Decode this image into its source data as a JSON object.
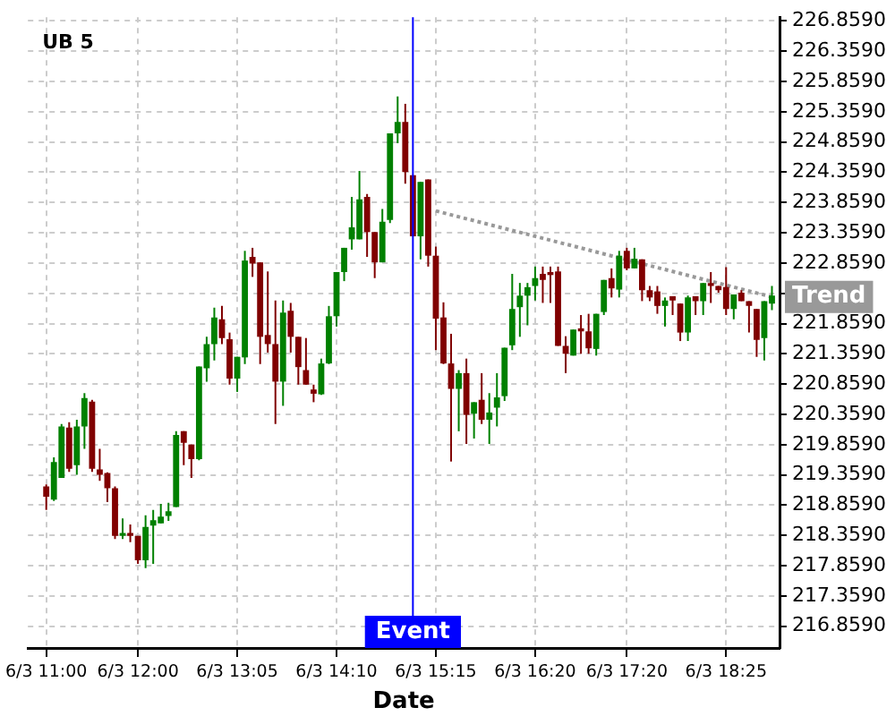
{
  "chart_data": {
    "type": "candlestick",
    "title": "UB 5",
    "xlabel": "Date",
    "x": [
      "--06-03T11:00",
      "--06-03T11:05",
      "--06-03T11:10",
      "--06-03T11:15",
      "--06-03T11:20",
      "--06-03T11:25",
      "--06-03T11:30",
      "--06-03T11:35",
      "--06-03T11:40",
      "--06-03T11:45",
      "--06-03T11:50",
      "--06-03T11:55",
      "--06-03T12:00",
      "--06-03T12:05",
      "--06-03T12:10",
      "--06-03T12:15",
      "--06-03T12:20",
      "--06-03T12:25",
      "--06-03T12:30",
      "--06-03T12:35",
      "--06-03T12:40",
      "--06-03T12:45",
      "--06-03T12:50",
      "--06-03T12:55",
      "--06-03T13:00",
      "--06-03T13:05",
      "--06-03T13:10",
      "--06-03T13:15",
      "--06-03T13:20",
      "--06-03T13:25",
      "--06-03T13:30",
      "--06-03T13:35",
      "--06-03T13:40",
      "--06-03T13:45",
      "--06-03T13:50",
      "--06-03T13:55",
      "--06-03T14:00",
      "--06-03T14:05",
      "--06-03T14:10",
      "--06-03T14:15",
      "--06-03T14:20",
      "--06-03T14:25",
      "--06-03T14:30",
      "--06-03T14:35",
      "--06-03T14:40",
      "--06-03T14:45",
      "--06-03T14:50",
      "--06-03T14:55",
      "--06-03T15:00",
      "--06-03T15:05",
      "--06-03T15:10",
      "--06-03T15:15",
      "--06-03T15:20",
      "--06-03T15:25",
      "--06-03T15:30",
      "--06-03T15:35",
      "--06-03T15:40",
      "--06-03T15:45",
      "--06-03T15:50",
      "--06-03T15:55",
      "--06-03T16:00",
      "--06-03T16:05",
      "--06-03T16:10",
      "--06-03T16:15",
      "--06-03T16:20",
      "--06-03T16:25",
      "--06-03T16:30",
      "--06-03T16:35",
      "--06-03T16:40",
      "--06-03T16:45",
      "--06-03T16:50",
      "--06-03T16:55",
      "--06-03T17:00",
      "--06-03T17:05",
      "--06-03T17:10",
      "--06-03T17:15",
      "--06-03T17:20",
      "--06-03T17:25",
      "--06-03T17:30",
      "--06-03T17:35",
      "--06-03T17:40",
      "--06-03T17:45",
      "--06-03T17:50",
      "--06-03T17:55",
      "--06-03T18:00",
      "--06-03T18:05",
      "--06-03T18:10",
      "--06-03T18:15",
      "--06-03T18:20",
      "--06-03T18:25",
      "--06-03T18:30",
      "--06-03T18:35",
      "--06-03T18:40",
      "--06-03T18:45",
      "--06-03T18:50",
      "--06-03T18:55"
    ],
    "ohlc": [
      [
        219.17,
        219.2,
        218.78,
        219.0
      ],
      [
        218.95,
        219.65,
        218.93,
        219.57
      ],
      [
        219.31,
        220.2,
        219.31,
        220.16
      ],
      [
        220.14,
        220.23,
        219.41,
        219.46
      ],
      [
        219.52,
        220.27,
        219.36,
        220.16
      ],
      [
        220.16,
        220.71,
        219.79,
        220.63
      ],
      [
        220.57,
        220.6,
        219.41,
        219.46
      ],
      [
        219.45,
        219.79,
        219.26,
        219.36
      ],
      [
        219.39,
        219.4,
        218.91,
        219.14
      ],
      [
        219.14,
        219.17,
        218.3,
        218.35
      ],
      [
        218.35,
        218.64,
        218.3,
        218.4
      ],
      [
        218.4,
        218.54,
        218.25,
        218.35
      ],
      [
        218.35,
        218.35,
        217.89,
        217.95
      ],
      [
        217.95,
        218.69,
        217.82,
        218.5
      ],
      [
        218.52,
        218.78,
        217.89,
        218.61
      ],
      [
        218.56,
        218.88,
        218.56,
        218.67
      ],
      [
        218.68,
        218.9,
        218.6,
        218.76
      ],
      [
        218.83,
        220.08,
        218.83,
        220.02
      ],
      [
        220.08,
        220.08,
        219.52,
        219.89
      ],
      [
        219.86,
        219.86,
        219.31,
        219.62
      ],
      [
        219.62,
        221.15,
        219.6,
        221.15
      ],
      [
        221.12,
        221.64,
        220.9,
        221.52
      ],
      [
        221.52,
        222.12,
        221.25,
        221.96
      ],
      [
        221.93,
        222.15,
        221.52,
        221.62
      ],
      [
        221.6,
        221.71,
        220.85,
        220.95
      ],
      [
        220.95,
        221.31,
        220.73,
        221.31
      ],
      [
        221.3,
        223.06,
        221.19,
        222.9
      ],
      [
        222.96,
        223.11,
        222.63,
        222.85
      ],
      [
        222.87,
        222.87,
        221.19,
        221.64
      ],
      [
        221.67,
        222.72,
        221.38,
        221.52
      ],
      [
        221.52,
        222.24,
        220.2,
        220.9
      ],
      [
        220.9,
        222.24,
        220.5,
        222.04
      ],
      [
        222.07,
        222.2,
        221.38,
        221.64
      ],
      [
        221.64,
        221.64,
        220.85,
        221.14
      ],
      [
        221.09,
        221.62,
        220.85,
        220.85
      ],
      [
        220.77,
        220.85,
        220.56,
        220.7
      ],
      [
        220.69,
        221.28,
        220.68,
        221.2
      ],
      [
        221.2,
        222.15,
        221.19,
        221.98
      ],
      [
        221.98,
        222.71,
        221.81,
        222.71
      ],
      [
        222.71,
        223.11,
        222.56,
        223.11
      ],
      [
        223.25,
        223.95,
        223.08,
        223.45
      ],
      [
        223.25,
        224.38,
        223.25,
        223.91
      ],
      [
        223.95,
        224.0,
        222.96,
        223.37
      ],
      [
        223.37,
        223.37,
        222.61,
        222.87
      ],
      [
        222.87,
        223.75,
        222.87,
        223.54
      ],
      [
        223.57,
        225.0,
        223.52,
        225.0
      ],
      [
        225.0,
        225.61,
        224.84,
        225.19
      ],
      [
        225.19,
        225.49,
        224.17,
        224.36
      ],
      [
        224.31,
        224.31,
        223.3,
        223.3
      ],
      [
        223.3,
        224.2,
        222.92,
        224.2
      ],
      [
        224.24,
        224.24,
        222.8,
        222.98
      ],
      [
        222.98,
        223.13,
        221.42,
        221.94
      ],
      [
        221.96,
        222.21,
        221.19,
        221.2
      ],
      [
        221.2,
        221.69,
        219.58,
        220.78
      ],
      [
        220.78,
        221.09,
        220.08,
        221.04
      ],
      [
        221.04,
        221.28,
        219.87,
        220.35
      ],
      [
        220.37,
        220.56,
        219.96,
        220.56
      ],
      [
        220.6,
        221.04,
        220.2,
        220.27
      ],
      [
        220.27,
        220.71,
        219.87,
        220.39
      ],
      [
        220.47,
        221.04,
        220.16,
        220.64
      ],
      [
        220.66,
        221.46,
        220.58,
        221.46
      ],
      [
        221.5,
        222.68,
        221.42,
        222.1
      ],
      [
        222.13,
        222.53,
        221.64,
        222.32
      ],
      [
        222.32,
        222.53,
        221.83,
        222.46
      ],
      [
        222.48,
        222.8,
        222.24,
        222.61
      ],
      [
        222.68,
        222.8,
        222.2,
        222.58
      ],
      [
        222.71,
        222.8,
        222.2,
        222.66
      ],
      [
        222.72,
        222.8,
        221.49,
        221.49
      ],
      [
        221.49,
        221.65,
        221.04,
        221.36
      ],
      [
        221.33,
        221.76,
        221.33,
        221.76
      ],
      [
        221.78,
        222.0,
        221.36,
        221.73
      ],
      [
        221.73,
        222.02,
        221.36,
        221.45
      ],
      [
        221.44,
        222.02,
        221.33,
        222.02
      ],
      [
        222.05,
        222.58,
        222.0,
        222.58
      ],
      [
        222.61,
        222.77,
        222.29,
        222.44
      ],
      [
        222.42,
        223.06,
        222.29,
        222.98
      ],
      [
        223.06,
        223.11,
        222.74,
        222.77
      ],
      [
        222.77,
        223.11,
        222.77,
        222.93
      ],
      [
        222.92,
        222.92,
        222.23,
        222.41
      ],
      [
        222.41,
        222.48,
        222.23,
        222.29
      ],
      [
        222.39,
        222.48,
        222.02,
        222.15
      ],
      [
        222.15,
        222.29,
        221.81,
        222.24
      ],
      [
        222.31,
        222.31,
        222.0,
        222.24
      ],
      [
        222.19,
        222.19,
        221.57,
        221.71
      ],
      [
        221.71,
        222.32,
        221.57,
        222.29
      ],
      [
        222.31,
        222.31,
        222.0,
        222.23
      ],
      [
        222.23,
        222.53,
        222.0,
        222.53
      ],
      [
        222.53,
        222.71,
        222.2,
        222.48
      ],
      [
        222.48,
        222.48,
        222.37,
        222.41
      ],
      [
        222.46,
        222.79,
        222.0,
        222.1
      ],
      [
        222.1,
        222.34,
        221.93,
        222.34
      ],
      [
        222.37,
        222.41,
        222.23,
        222.23
      ],
      [
        222.23,
        222.23,
        221.71,
        222.15
      ],
      [
        222.1,
        222.1,
        221.31,
        221.59
      ],
      [
        221.62,
        222.23,
        221.25,
        222.23
      ],
      [
        222.19,
        222.48,
        222.08,
        222.32
      ]
    ],
    "colors": [
      "#800000",
      "#008000",
      "#008000",
      "#800000",
      "#008000",
      "#008000",
      "#800000",
      "#800000",
      "#800000",
      "#800000",
      "#008000",
      "#800000",
      "#800000",
      "#008000",
      "#008000",
      "#008000",
      "#008000",
      "#008000",
      "#800000",
      "#800000",
      "#008000",
      "#008000",
      "#008000",
      "#800000",
      "#800000",
      "#008000",
      "#008000",
      "#800000",
      "#800000",
      "#800000",
      "#800000",
      "#008000",
      "#800000",
      "#800000",
      "#800000",
      "#800000",
      "#008000",
      "#008000",
      "#008000",
      "#008000",
      "#008000",
      "#008000",
      "#800000",
      "#800000",
      "#008000",
      "#008000",
      "#008000",
      "#800000",
      "#800000",
      "#008000",
      "#800000",
      "#800000",
      "#800000",
      "#800000",
      "#008000",
      "#800000",
      "#008000",
      "#800000",
      "#008000",
      "#008000",
      "#008000",
      "#008000",
      "#008000",
      "#008000",
      "#008000",
      "#800000",
      "#800000",
      "#800000",
      "#800000",
      "#008000",
      "#800000",
      "#800000",
      "#008000",
      "#008000",
      "#800000",
      "#008000",
      "#800000",
      "#008000",
      "#800000",
      "#800000",
      "#800000",
      "#008000",
      "#800000",
      "#800000",
      "#008000",
      "#800000",
      "#008000",
      "#800000",
      "#800000",
      "#800000",
      "#008000",
      "#800000",
      "#800000",
      "#800000",
      "#008000",
      "#008000"
    ],
    "series": [
      {
        "name": "Trend",
        "type": "line",
        "x": [
          "--06-03T15:15",
          "--06-03T18:55"
        ],
        "values": [
          223.72,
          222.3
        ],
        "color": "#999999",
        "line_style": "dotted"
      }
    ],
    "xlim": [
      "--06-03T10:48",
      "--06-03T19:00"
    ],
    "xticks": [
      {
        "value": "--06-03T11:00",
        "label": "6/3 11:00"
      },
      {
        "value": "--06-03T12:00",
        "label": "6/3 12:00"
      },
      {
        "value": "--06-03T13:05",
        "label": "6/3 13:05"
      },
      {
        "value": "--06-03T14:10",
        "label": "6/3 14:10"
      },
      {
        "value": "--06-03T15:15",
        "label": "6/3 15:15"
      },
      {
        "value": "--06-03T16:20",
        "label": "6/3 16:20"
      },
      {
        "value": "--06-03T17:20",
        "label": "6/3 17:20"
      },
      {
        "value": "--06-03T18:25",
        "label": "6/3 18:25"
      }
    ],
    "ylim": [
      216.5,
      226.92
    ],
    "yticks": [
      {
        "value": 216.859,
        "label": "216.8590"
      },
      {
        "value": 217.359,
        "label": "217.3590"
      },
      {
        "value": 217.859,
        "label": "217.8590"
      },
      {
        "value": 218.359,
        "label": "218.3590"
      },
      {
        "value": 218.859,
        "label": "218.8590"
      },
      {
        "value": 219.359,
        "label": "219.3590"
      },
      {
        "value": 219.859,
        "label": "219.8590"
      },
      {
        "value": 220.359,
        "label": "220.3590"
      },
      {
        "value": 220.859,
        "label": "220.8590"
      },
      {
        "value": 221.359,
        "label": "221.3590"
      },
      {
        "value": 221.859,
        "label": "221.8590"
      },
      {
        "value": 222.359,
        "label": null
      },
      {
        "value": 222.859,
        "label": "222.8590"
      },
      {
        "value": 223.359,
        "label": "223.3590"
      },
      {
        "value": 223.859,
        "label": "223.8590"
      },
      {
        "value": 224.359,
        "label": "224.3590"
      },
      {
        "value": 224.859,
        "label": "224.8590"
      },
      {
        "value": 225.359,
        "label": "225.3590"
      },
      {
        "value": 225.859,
        "label": "225.8590"
      },
      {
        "value": 226.359,
        "label": "226.3590"
      },
      {
        "value": 226.859,
        "label": "226.8590"
      }
    ],
    "grid": true,
    "ref_lines": [
      {
        "axis": "x",
        "value": "--06-03T15:00",
        "label": "Event",
        "color": "#0000ff"
      }
    ]
  }
}
